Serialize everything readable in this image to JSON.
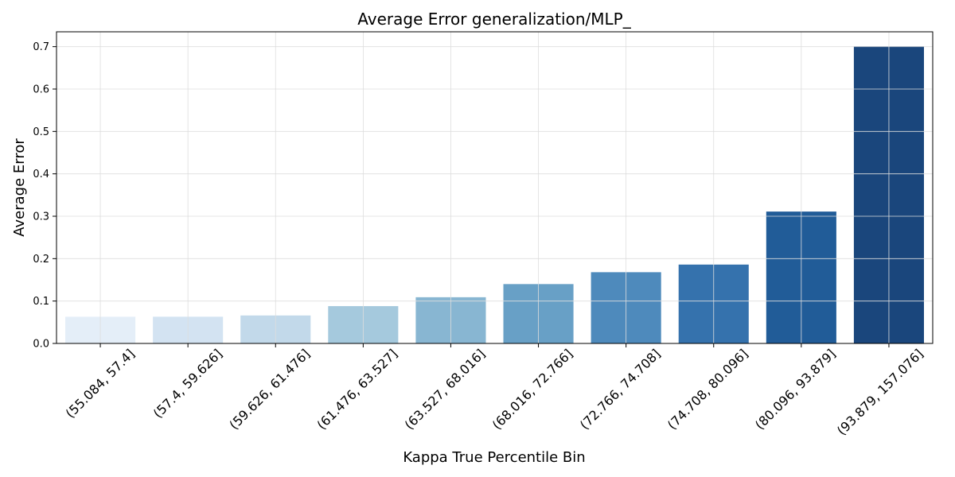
{
  "chart_data": {
    "type": "bar",
    "title": "Average Error generalization/MLP_",
    "xlabel": "Kappa True Percentile Bin",
    "ylabel": "Average Error",
    "categories": [
      "(55.084, 57.4]",
      "(57.4, 59.626]",
      "(59.626, 61.476]",
      "(61.476, 63.527]",
      "(63.527, 68.016]",
      "(68.016, 72.766]",
      "(72.766, 74.708]",
      "(74.708, 80.096]",
      "(80.096, 93.879]",
      "(93.879, 157.076]"
    ],
    "values": [
      0.063,
      0.063,
      0.066,
      0.088,
      0.109,
      0.14,
      0.168,
      0.186,
      0.311,
      0.701
    ],
    "ylim": [
      0,
      0.735
    ],
    "yticks": [
      0.0,
      0.1,
      0.2,
      0.3,
      0.4,
      0.5,
      0.6,
      0.7
    ],
    "ytick_labels": [
      "0.0",
      "0.1",
      "0.2",
      "0.3",
      "0.4",
      "0.5",
      "0.6",
      "0.7"
    ],
    "colors": [
      "#e4eef8",
      "#d3e3f2",
      "#c2d9ea",
      "#a5c9dd",
      "#88b6d2",
      "#68a0c6",
      "#4e8abc",
      "#3572ad",
      "#215c98",
      "#1a467c"
    ],
    "grid": true,
    "legend": "none"
  }
}
